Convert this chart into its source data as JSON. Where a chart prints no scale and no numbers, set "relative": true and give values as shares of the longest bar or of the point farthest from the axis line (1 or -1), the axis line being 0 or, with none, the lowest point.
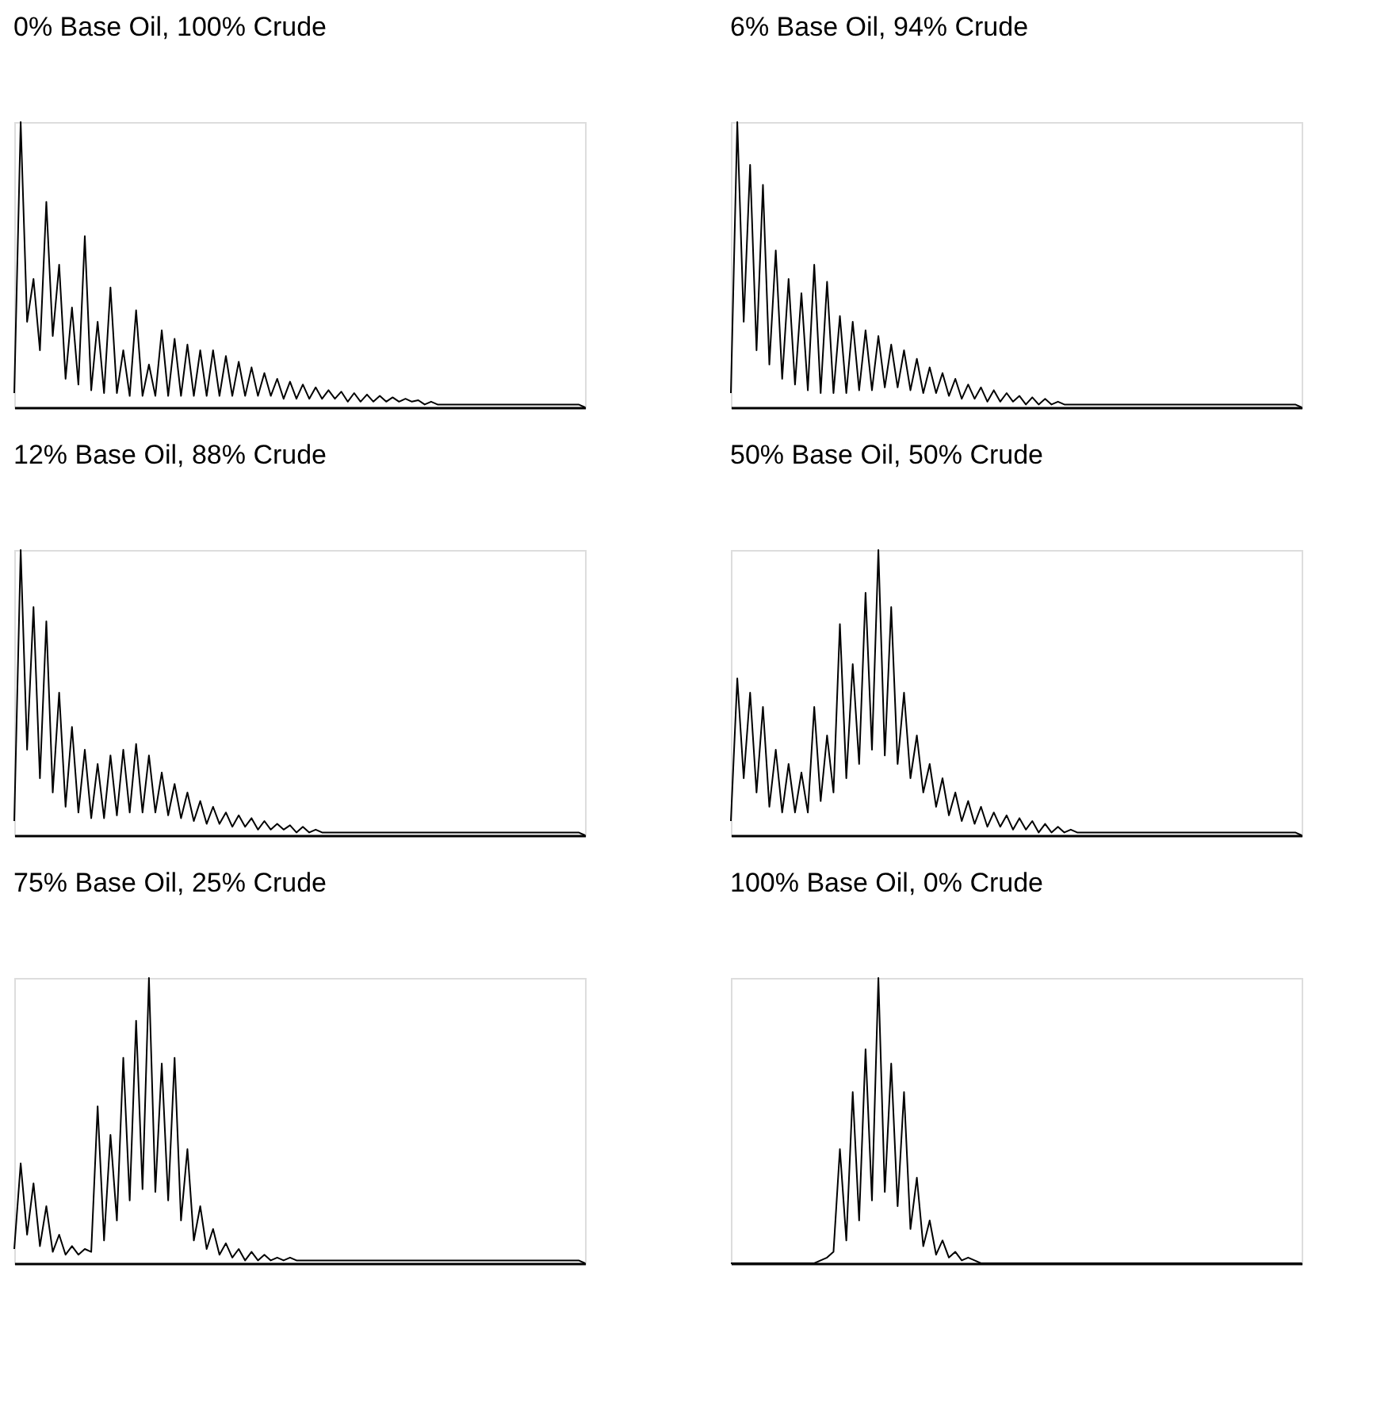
{
  "chart_data": [
    {
      "type": "line",
      "relative": true,
      "title": "0% Base Oil, 100% Crude",
      "categories": [
        null,
        null,
        null,
        null,
        null,
        null,
        null,
        null,
        null,
        null,
        null,
        null,
        null,
        null,
        null,
        null,
        null,
        null,
        null,
        null,
        null,
        null,
        null,
        null,
        null,
        null,
        null,
        null,
        null,
        null,
        null,
        null,
        null,
        null,
        null,
        null,
        null,
        null,
        null,
        null,
        null,
        null,
        null,
        null,
        null,
        null,
        null,
        null,
        null,
        null,
        null,
        null,
        null,
        null,
        null,
        null,
        null,
        null,
        null,
        null,
        null,
        null,
        null,
        null,
        null,
        null,
        null,
        null,
        null,
        null,
        null,
        null,
        null,
        null,
        null,
        null,
        null,
        null,
        null,
        null,
        null,
        null,
        null,
        null,
        null,
        null,
        null,
        null,
        null,
        null
      ],
      "series": [
        {
          "color": "#000000",
          "values": [
            0.05,
            1.0,
            0.3,
            0.45,
            0.2,
            0.72,
            0.25,
            0.5,
            0.1,
            0.35,
            0.08,
            0.6,
            0.06,
            0.3,
            0.05,
            0.42,
            0.05,
            0.2,
            0.04,
            0.34,
            0.04,
            0.15,
            0.04,
            0.27,
            0.04,
            0.24,
            0.04,
            0.22,
            0.04,
            0.2,
            0.04,
            0.2,
            0.04,
            0.18,
            0.04,
            0.16,
            0.04,
            0.14,
            0.04,
            0.12,
            0.04,
            0.1,
            0.03,
            0.09,
            0.03,
            0.08,
            0.03,
            0.07,
            0.03,
            0.06,
            0.03,
            0.055,
            0.02,
            0.05,
            0.02,
            0.045,
            0.02,
            0.04,
            0.02,
            0.035,
            0.02,
            0.03,
            0.02,
            0.025,
            0.01,
            0.02,
            0.01,
            0.01,
            0.01,
            0.01,
            0.01,
            0.01,
            0.01,
            0.01,
            0.01,
            0.01,
            0.01,
            0.01,
            0.01,
            0.01,
            0.01,
            0.01,
            0.01,
            0.01,
            0.01,
            0.01,
            0.01,
            0.01,
            0.01,
            0
          ]
        }
      ]
    },
    {
      "type": "line",
      "relative": true,
      "title": "6% Base Oil, 94% Crude",
      "categories": [
        null,
        null,
        null,
        null,
        null,
        null,
        null,
        null,
        null,
        null,
        null,
        null,
        null,
        null,
        null,
        null,
        null,
        null,
        null,
        null,
        null,
        null,
        null,
        null,
        null,
        null,
        null,
        null,
        null,
        null,
        null,
        null,
        null,
        null,
        null,
        null,
        null,
        null,
        null,
        null,
        null,
        null,
        null,
        null,
        null,
        null,
        null,
        null,
        null,
        null,
        null,
        null,
        null,
        null,
        null,
        null,
        null,
        null,
        null,
        null,
        null,
        null,
        null,
        null,
        null,
        null,
        null,
        null,
        null,
        null,
        null,
        null,
        null,
        null,
        null,
        null,
        null,
        null,
        null,
        null,
        null,
        null,
        null,
        null,
        null,
        null,
        null,
        null,
        null,
        null
      ],
      "series": [
        {
          "color": "#000000",
          "values": [
            0.05,
            1.0,
            0.3,
            0.85,
            0.2,
            0.78,
            0.15,
            0.55,
            0.1,
            0.45,
            0.08,
            0.4,
            0.06,
            0.5,
            0.05,
            0.44,
            0.05,
            0.32,
            0.05,
            0.3,
            0.06,
            0.27,
            0.06,
            0.25,
            0.07,
            0.22,
            0.07,
            0.2,
            0.06,
            0.17,
            0.05,
            0.14,
            0.05,
            0.12,
            0.04,
            0.1,
            0.03,
            0.08,
            0.03,
            0.07,
            0.02,
            0.06,
            0.02,
            0.05,
            0.02,
            0.04,
            0.01,
            0.035,
            0.01,
            0.03,
            0.01,
            0.02,
            0.01,
            0.01,
            0.01,
            0.01,
            0.01,
            0.01,
            0.01,
            0.01,
            0.01,
            0.01,
            0.01,
            0.01,
            0.01,
            0.01,
            0.01,
            0.01,
            0.01,
            0.01,
            0.01,
            0.01,
            0.01,
            0.01,
            0.01,
            0.01,
            0.01,
            0.01,
            0.01,
            0.01,
            0.01,
            0.01,
            0.01,
            0.01,
            0.01,
            0.01,
            0.01,
            0.01,
            0.01,
            0
          ]
        }
      ]
    },
    {
      "type": "line",
      "relative": true,
      "title": "12% Base Oil, 88% Crude",
      "categories": [
        null,
        null,
        null,
        null,
        null,
        null,
        null,
        null,
        null,
        null,
        null,
        null,
        null,
        null,
        null,
        null,
        null,
        null,
        null,
        null,
        null,
        null,
        null,
        null,
        null,
        null,
        null,
        null,
        null,
        null,
        null,
        null,
        null,
        null,
        null,
        null,
        null,
        null,
        null,
        null,
        null,
        null,
        null,
        null,
        null,
        null,
        null,
        null,
        null,
        null,
        null,
        null,
        null,
        null,
        null,
        null,
        null,
        null,
        null,
        null,
        null,
        null,
        null,
        null,
        null,
        null,
        null,
        null,
        null,
        null,
        null,
        null,
        null,
        null,
        null,
        null,
        null,
        null,
        null,
        null,
        null,
        null,
        null,
        null,
        null,
        null,
        null,
        null,
        null,
        null
      ],
      "series": [
        {
          "color": "#000000",
          "values": [
            0.05,
            1.0,
            0.3,
            0.8,
            0.2,
            0.75,
            0.15,
            0.5,
            0.1,
            0.38,
            0.08,
            0.3,
            0.06,
            0.25,
            0.06,
            0.28,
            0.07,
            0.3,
            0.08,
            0.32,
            0.08,
            0.28,
            0.08,
            0.22,
            0.07,
            0.18,
            0.06,
            0.15,
            0.05,
            0.12,
            0.04,
            0.1,
            0.04,
            0.08,
            0.03,
            0.07,
            0.03,
            0.06,
            0.02,
            0.05,
            0.02,
            0.04,
            0.02,
            0.035,
            0.01,
            0.03,
            0.01,
            0.02,
            0.01,
            0.01,
            0.01,
            0.01,
            0.01,
            0.01,
            0.01,
            0.01,
            0.01,
            0.01,
            0.01,
            0.01,
            0.01,
            0.01,
            0.01,
            0.01,
            0.01,
            0.01,
            0.01,
            0.01,
            0.01,
            0.01,
            0.01,
            0.01,
            0.01,
            0.01,
            0.01,
            0.01,
            0.01,
            0.01,
            0.01,
            0.01,
            0.01,
            0.01,
            0.01,
            0.01,
            0.01,
            0.01,
            0.01,
            0.01,
            0.01,
            0
          ]
        }
      ]
    },
    {
      "type": "line",
      "relative": true,
      "title": "50% Base Oil, 50% Crude",
      "categories": [
        null,
        null,
        null,
        null,
        null,
        null,
        null,
        null,
        null,
        null,
        null,
        null,
        null,
        null,
        null,
        null,
        null,
        null,
        null,
        null,
        null,
        null,
        null,
        null,
        null,
        null,
        null,
        null,
        null,
        null,
        null,
        null,
        null,
        null,
        null,
        null,
        null,
        null,
        null,
        null,
        null,
        null,
        null,
        null,
        null,
        null,
        null,
        null,
        null,
        null,
        null,
        null,
        null,
        null,
        null,
        null,
        null,
        null,
        null,
        null,
        null,
        null,
        null,
        null,
        null,
        null,
        null,
        null,
        null,
        null,
        null,
        null,
        null,
        null,
        null,
        null,
        null,
        null,
        null,
        null,
        null,
        null,
        null,
        null,
        null,
        null,
        null,
        null,
        null,
        null
      ],
      "series": [
        {
          "color": "#000000",
          "values": [
            0.05,
            0.55,
            0.2,
            0.5,
            0.15,
            0.45,
            0.1,
            0.3,
            0.08,
            0.25,
            0.08,
            0.22,
            0.08,
            0.45,
            0.12,
            0.35,
            0.15,
            0.74,
            0.2,
            0.6,
            0.25,
            0.85,
            0.3,
            1.0,
            0.28,
            0.8,
            0.25,
            0.5,
            0.2,
            0.35,
            0.15,
            0.25,
            0.1,
            0.2,
            0.07,
            0.15,
            0.05,
            0.12,
            0.04,
            0.1,
            0.03,
            0.08,
            0.03,
            0.07,
            0.02,
            0.06,
            0.02,
            0.05,
            0.01,
            0.04,
            0.01,
            0.03,
            0.01,
            0.02,
            0.01,
            0.01,
            0.01,
            0.01,
            0.01,
            0.01,
            0.01,
            0.01,
            0.01,
            0.01,
            0.01,
            0.01,
            0.01,
            0.01,
            0.01,
            0.01,
            0.01,
            0.01,
            0.01,
            0.01,
            0.01,
            0.01,
            0.01,
            0.01,
            0.01,
            0.01,
            0.01,
            0.01,
            0.01,
            0.01,
            0.01,
            0.01,
            0.01,
            0.01,
            0.01,
            0
          ]
        }
      ]
    },
    {
      "type": "line",
      "relative": true,
      "title": "75% Base Oil, 25% Crude",
      "categories": [
        null,
        null,
        null,
        null,
        null,
        null,
        null,
        null,
        null,
        null,
        null,
        null,
        null,
        null,
        null,
        null,
        null,
        null,
        null,
        null,
        null,
        null,
        null,
        null,
        null,
        null,
        null,
        null,
        null,
        null,
        null,
        null,
        null,
        null,
        null,
        null,
        null,
        null,
        null,
        null,
        null,
        null,
        null,
        null,
        null,
        null,
        null,
        null,
        null,
        null,
        null,
        null,
        null,
        null,
        null,
        null,
        null,
        null,
        null,
        null,
        null,
        null,
        null,
        null,
        null,
        null,
        null,
        null,
        null,
        null,
        null,
        null,
        null,
        null,
        null,
        null,
        null,
        null,
        null,
        null,
        null,
        null,
        null,
        null,
        null,
        null,
        null,
        null,
        null,
        null
      ],
      "series": [
        {
          "color": "#000000",
          "values": [
            0.05,
            0.35,
            0.1,
            0.28,
            0.06,
            0.2,
            0.04,
            0.1,
            0.03,
            0.06,
            0.03,
            0.05,
            0.04,
            0.55,
            0.08,
            0.45,
            0.15,
            0.72,
            0.22,
            0.85,
            0.26,
            1.0,
            0.25,
            0.7,
            0.22,
            0.72,
            0.15,
            0.4,
            0.08,
            0.2,
            0.05,
            0.12,
            0.03,
            0.07,
            0.02,
            0.05,
            0.01,
            0.04,
            0.01,
            0.03,
            0.01,
            0.02,
            0.01,
            0.02,
            0.01,
            0.01,
            0.01,
            0.01,
            0.01,
            0.01,
            0.01,
            0.01,
            0.01,
            0.01,
            0.01,
            0.01,
            0.01,
            0.01,
            0.01,
            0.01,
            0.01,
            0.01,
            0.01,
            0.01,
            0.01,
            0.01,
            0.01,
            0.01,
            0.01,
            0.01,
            0.01,
            0.01,
            0.01,
            0.01,
            0.01,
            0.01,
            0.01,
            0.01,
            0.01,
            0.01,
            0.01,
            0.01,
            0.01,
            0.01,
            0.01,
            0.01,
            0.01,
            0.01,
            0.01,
            0
          ]
        }
      ]
    },
    {
      "type": "line",
      "relative": true,
      "title": "100% Base Oil, 0% Crude",
      "categories": [
        null,
        null,
        null,
        null,
        null,
        null,
        null,
        null,
        null,
        null,
        null,
        null,
        null,
        null,
        null,
        null,
        null,
        null,
        null,
        null,
        null,
        null,
        null,
        null,
        null,
        null,
        null,
        null,
        null,
        null,
        null,
        null,
        null,
        null,
        null,
        null,
        null,
        null,
        null,
        null,
        null,
        null,
        null,
        null,
        null,
        null,
        null,
        null,
        null,
        null,
        null,
        null,
        null,
        null,
        null,
        null,
        null,
        null,
        null,
        null,
        null,
        null,
        null,
        null,
        null,
        null,
        null,
        null,
        null,
        null,
        null,
        null,
        null,
        null,
        null,
        null,
        null,
        null,
        null,
        null,
        null,
        null,
        null,
        null,
        null,
        null,
        null,
        null,
        null,
        null
      ],
      "series": [
        {
          "color": "#000000",
          "values": [
            0,
            0,
            0,
            0,
            0,
            0,
            0,
            0,
            0,
            0,
            0,
            0,
            0,
            0,
            0.01,
            0.02,
            0.04,
            0.4,
            0.08,
            0.6,
            0.15,
            0.75,
            0.22,
            1.0,
            0.25,
            0.7,
            0.2,
            0.6,
            0.12,
            0.3,
            0.06,
            0.15,
            0.03,
            0.08,
            0.02,
            0.04,
            0.01,
            0.02,
            0.01,
            0,
            0,
            0,
            0,
            0,
            0,
            0,
            0,
            0,
            0,
            0,
            0,
            0,
            0,
            0,
            0,
            0,
            0,
            0,
            0,
            0,
            0,
            0,
            0,
            0,
            0,
            0,
            0,
            0,
            0,
            0,
            0,
            0,
            0,
            0,
            0,
            0,
            0,
            0,
            0,
            0,
            0,
            0,
            0,
            0,
            0,
            0,
            0,
            0,
            0,
            0
          ]
        }
      ]
    }
  ]
}
